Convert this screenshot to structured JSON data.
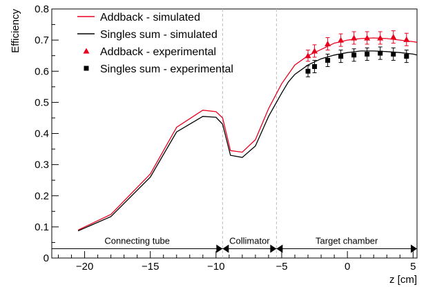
{
  "chart_data": {
    "type": "line",
    "xlabel": "z [cm]",
    "ylabel": "Efficiency",
    "xlim": [
      -22.5,
      5.3
    ],
    "ylim": [
      0,
      0.8
    ],
    "x_ticks": [
      -20,
      -15,
      -10,
      -5,
      0,
      5
    ],
    "x_tick_labels": [
      "−20",
      "−15",
      "−10",
      "−5",
      "0",
      "5"
    ],
    "y_ticks": [
      0,
      0.1,
      0.2,
      0.3,
      0.4,
      0.5,
      0.6,
      0.7,
      0.8
    ],
    "y_tick_labels": [
      "0",
      "0.1",
      "0.2",
      "0.3",
      "0.4",
      "0.5",
      "0.6",
      "0.7",
      "0.8"
    ],
    "grid": false,
    "legend_position": "top-left",
    "series": [
      {
        "name": "Addback - simulated",
        "kind": "line",
        "color": "#e8001c",
        "x": [
          -20.5,
          -18,
          -15,
          -13,
          -11,
          -10,
          -9.5,
          -8.9,
          -8,
          -7,
          -6,
          -5,
          -4.5,
          -4,
          -3,
          -2,
          -1,
          0,
          1,
          2,
          3,
          4,
          5,
          5.3
        ],
        "y": [
          0.09,
          0.14,
          0.27,
          0.42,
          0.475,
          0.47,
          0.45,
          0.345,
          0.34,
          0.38,
          0.48,
          0.56,
          0.59,
          0.62,
          0.65,
          0.67,
          0.69,
          0.7,
          0.705,
          0.707,
          0.705,
          0.7,
          0.695,
          0.693
        ]
      },
      {
        "name": "Singles sum - simulated",
        "kind": "line",
        "color": "#000000",
        "x": [
          -20.5,
          -18,
          -15,
          -13,
          -11,
          -10,
          -9.5,
          -8.9,
          -8,
          -7,
          -6,
          -5,
          -4.5,
          -4,
          -3,
          -2,
          -1,
          0,
          1,
          2,
          3,
          4,
          5,
          5.3
        ],
        "y": [
          0.087,
          0.133,
          0.26,
          0.405,
          0.455,
          0.452,
          0.43,
          0.33,
          0.323,
          0.36,
          0.455,
          0.53,
          0.565,
          0.59,
          0.62,
          0.64,
          0.652,
          0.66,
          0.665,
          0.665,
          0.663,
          0.66,
          0.655,
          0.652
        ]
      },
      {
        "name": "Addback - experimental",
        "kind": "scatter",
        "marker": "triangle",
        "color": "#e8001c",
        "x": [
          -3,
          -2.5,
          -1.5,
          -0.5,
          0.5,
          1.5,
          2.5,
          3.5,
          4.5
        ],
        "y": [
          0.65,
          0.665,
          0.688,
          0.7,
          0.707,
          0.707,
          0.707,
          0.71,
          0.702
        ],
        "err": [
          0.018,
          0.02,
          0.02,
          0.02,
          0.02,
          0.02,
          0.02,
          0.02,
          0.02
        ]
      },
      {
        "name": "Singles sum - experimental",
        "kind": "scatter",
        "marker": "square",
        "color": "#000000",
        "x": [
          -3,
          -2.5,
          -1.5,
          -0.5,
          0.5,
          1.5,
          2.5,
          3.5,
          4.5
        ],
        "y": [
          0.6,
          0.615,
          0.635,
          0.648,
          0.652,
          0.655,
          0.658,
          0.655,
          0.648
        ],
        "err": [
          0.018,
          0.02,
          0.02,
          0.02,
          0.02,
          0.02,
          0.02,
          0.02,
          0.02
        ]
      }
    ],
    "separators_x": [
      -9.5,
      -5.4
    ],
    "regions": [
      {
        "label": "Connecting tube",
        "from": -22.5,
        "to": -9.5
      },
      {
        "label": "Collimator",
        "from": -9.5,
        "to": -5.4
      },
      {
        "label": "Target chamber",
        "from": -5.4,
        "to": 5.3
      }
    ],
    "region_arrow_y": 0.03
  }
}
